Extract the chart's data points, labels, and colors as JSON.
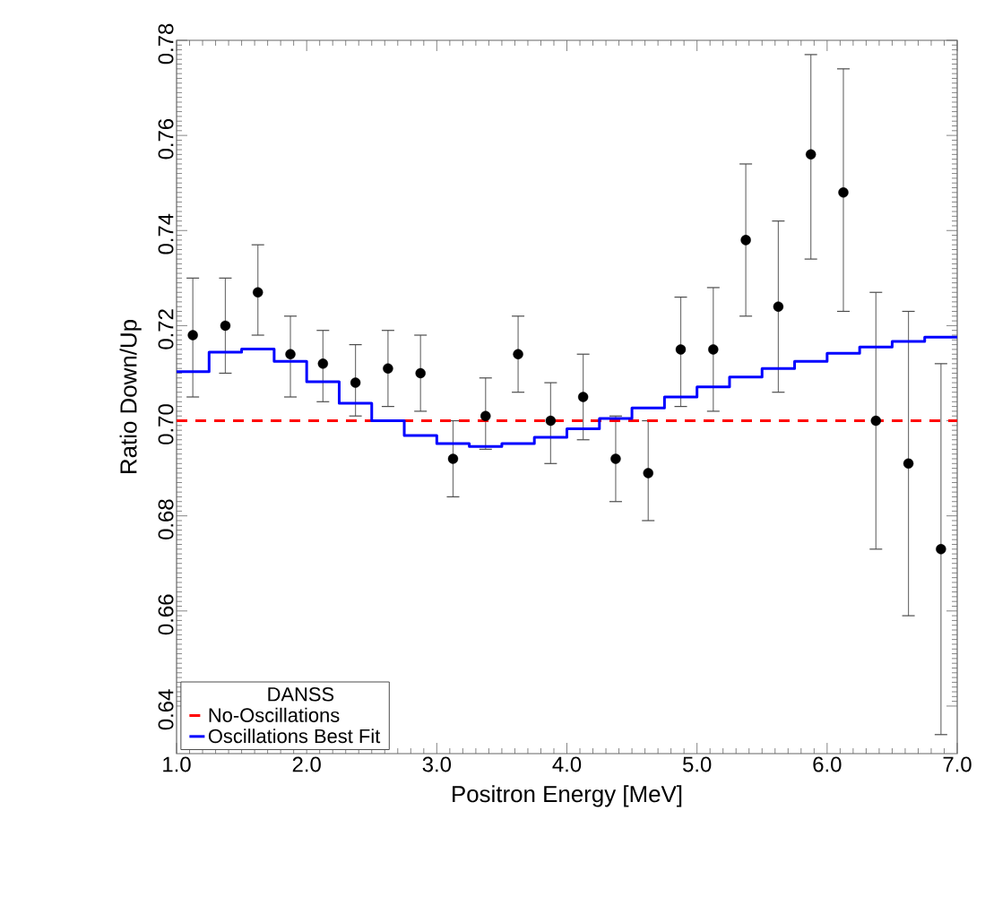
{
  "chart_data": {
    "type": "scatter",
    "xlabel": "Positron Energy [MeV]",
    "ylabel": "Ratio Down/Up",
    "legend_title": "DANSS",
    "legend": "bottom left",
    "grid": false,
    "xlim": [
      1.0,
      7.0
    ],
    "ylim": [
      0.63,
      0.78
    ],
    "xticks": [
      {
        "value": 1,
        "label": "1.0"
      },
      {
        "value": 2,
        "label": "2.0"
      },
      {
        "value": 3,
        "label": "3.0"
      },
      {
        "value": 4,
        "label": "4.0"
      },
      {
        "value": 5,
        "label": "5.0"
      },
      {
        "value": 6,
        "label": "6.0"
      },
      {
        "value": 7,
        "label": "7.0"
      }
    ],
    "yticks": [
      {
        "value": 0.64,
        "label": "0.64"
      },
      {
        "value": 0.66,
        "label": "0.66"
      },
      {
        "value": 0.68,
        "label": "0.68"
      },
      {
        "value": 0.7,
        "label": "0.70"
      },
      {
        "value": 0.72,
        "label": "0.72"
      },
      {
        "value": 0.74,
        "label": "0.74"
      },
      {
        "value": 0.76,
        "label": "0.76"
      },
      {
        "value": 0.78,
        "label": "0.78"
      }
    ],
    "series": [
      {
        "color": "#000000",
        "marker": "circle",
        "x": [
          1.125,
          1.375,
          1.625,
          1.875,
          2.125,
          2.375,
          2.625,
          2.875,
          3.125,
          3.375,
          3.625,
          3.875,
          4.125,
          4.375,
          4.625,
          4.875,
          5.125,
          5.375,
          5.625,
          5.875,
          6.125,
          6.375,
          6.625,
          6.875
        ],
        "values": [
          0.718,
          0.72,
          0.727,
          0.714,
          0.712,
          0.708,
          0.711,
          0.71,
          0.692,
          0.701,
          0.714,
          0.7,
          0.705,
          0.692,
          0.689,
          0.715,
          0.715,
          0.738,
          0.724,
          0.756,
          0.748,
          0.7,
          0.691,
          0.673
        ],
        "errors": [
          [
            0.705,
            0.73
          ],
          [
            0.71,
            0.73
          ],
          [
            0.718,
            0.737
          ],
          [
            0.705,
            0.722
          ],
          [
            0.704,
            0.719
          ],
          [
            0.701,
            0.716
          ],
          [
            0.703,
            0.719
          ],
          [
            0.702,
            0.718
          ],
          [
            0.684,
            0.7
          ],
          [
            0.694,
            0.709
          ],
          [
            0.706,
            0.722
          ],
          [
            0.691,
            0.708
          ],
          [
            0.696,
            0.714
          ],
          [
            0.683,
            0.701
          ],
          [
            0.679,
            0.7
          ],
          [
            0.703,
            0.726
          ],
          [
            0.702,
            0.728
          ],
          [
            0.722,
            0.754
          ],
          [
            0.706,
            0.742
          ],
          [
            0.734,
            0.777
          ],
          [
            0.723,
            0.774
          ],
          [
            0.673,
            0.727
          ],
          [
            0.659,
            0.723
          ],
          [
            0.634,
            0.712
          ]
        ]
      },
      {
        "type": "line",
        "name": "No-Oscillations",
        "color": "#ff0000",
        "line_style": "dashed",
        "marker": "none",
        "x": [
          1.0,
          7.0
        ],
        "values": [
          0.7,
          0.7
        ]
      },
      {
        "type": "step",
        "name": "Oscillations Best Fit",
        "color": "#0000ff",
        "line_style": "solid",
        "marker": "none",
        "x": [
          1.0,
          1.25,
          1.5,
          1.75,
          2.0,
          2.25,
          2.5,
          2.75,
          3.0,
          3.25,
          3.5,
          3.75,
          4.0,
          4.25,
          4.5,
          4.75,
          5.0,
          5.25,
          5.5,
          5.75,
          6.0,
          6.25,
          6.5,
          6.75,
          7.0
        ],
        "values": [
          0.7103,
          0.7144,
          0.7151,
          0.7125,
          0.7082,
          0.7037,
          0.7,
          0.6969,
          0.6952,
          0.6946,
          0.6952,
          0.6965,
          0.6983,
          0.7005,
          0.7027,
          0.705,
          0.7071,
          0.7092,
          0.711,
          0.7125,
          0.7142,
          0.7155,
          0.7167,
          0.7176,
          0.7176
        ]
      }
    ]
  }
}
